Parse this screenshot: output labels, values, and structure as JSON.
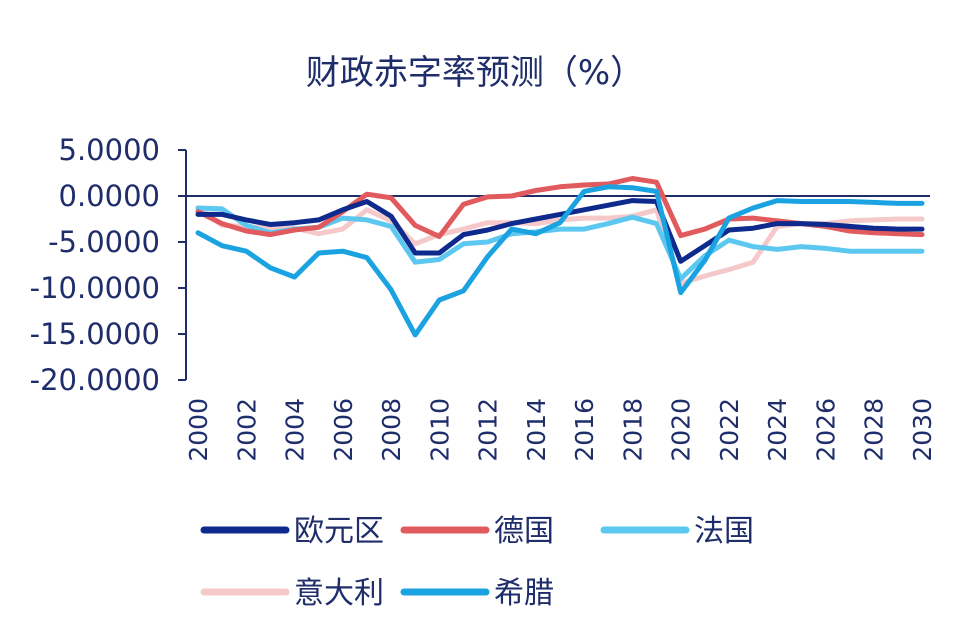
{
  "chart_data": {
    "type": "line",
    "title": "财政赤字率预测（%）",
    "xlabel": "",
    "ylabel": "",
    "ylim": [
      -20,
      5
    ],
    "y_ticks": [
      5,
      0,
      -5,
      -10,
      -15,
      -20
    ],
    "y_tick_labels": [
      "5.0000",
      "0.0000",
      "-5.0000",
      "-10.0000",
      "-15.0000",
      "-20.0000"
    ],
    "x_ticks": [
      "2000",
      "2002",
      "2004",
      "2006",
      "2008",
      "2010",
      "2012",
      "2014",
      "2016",
      "2018",
      "2020",
      "2022",
      "2024",
      "2026",
      "2028",
      "2030"
    ],
    "legend_position": "bottom",
    "x": [
      2000,
      2001,
      2002,
      2003,
      2004,
      2005,
      2006,
      2007,
      2008,
      2009,
      2010,
      2011,
      2012,
      2013,
      2014,
      2015,
      2016,
      2017,
      2018,
      2019,
      2020,
      2021,
      2022,
      2023,
      2024,
      2025,
      2026,
      2027,
      2028,
      2029,
      2030
    ],
    "series": [
      {
        "name": "欧元区",
        "color": "#0d2a8c",
        "values": [
          -2.0,
          -2.0,
          -2.6,
          -3.1,
          -2.9,
          -2.6,
          -1.5,
          -0.6,
          -2.2,
          -6.2,
          -6.2,
          -4.2,
          -3.7,
          -3.0,
          -2.5,
          -2.0,
          -1.5,
          -1.0,
          -0.5,
          -0.6,
          -7.1,
          -5.4,
          -3.7,
          -3.5,
          -3.0,
          -3.0,
          -3.1,
          -3.3,
          -3.5,
          -3.6,
          -3.6
        ]
      },
      {
        "name": "德国",
        "color": "#e05a5e",
        "values": [
          -1.7,
          -3.0,
          -3.8,
          -4.2,
          -3.7,
          -3.4,
          -1.7,
          0.2,
          -0.2,
          -3.2,
          -4.4,
          -0.9,
          -0.1,
          0.0,
          0.6,
          1.0,
          1.2,
          1.3,
          1.9,
          1.5,
          -4.3,
          -3.6,
          -2.5,
          -2.4,
          -2.7,
          -3.0,
          -3.3,
          -3.8,
          -4.0,
          -4.1,
          -4.2
        ]
      },
      {
        "name": "法国",
        "color": "#5cc8f0",
        "values": [
          -1.3,
          -1.4,
          -3.2,
          -4.0,
          -3.6,
          -3.4,
          -2.4,
          -2.6,
          -3.3,
          -7.2,
          -6.9,
          -5.2,
          -5.0,
          -4.1,
          -3.9,
          -3.6,
          -3.6,
          -3.0,
          -2.3,
          -3.0,
          -9.0,
          -6.5,
          -4.8,
          -5.5,
          -5.8,
          -5.5,
          -5.7,
          -6.0,
          -6.0,
          -6.0,
          -6.0
        ]
      },
      {
        "name": "意大利",
        "color": "#f5c9c9",
        "values": [
          -1.3,
          -3.2,
          -3.3,
          -3.5,
          -3.5,
          -4.1,
          -3.6,
          -1.5,
          -2.7,
          -5.2,
          -4.2,
          -3.6,
          -2.9,
          -2.9,
          -3.0,
          -2.6,
          -2.4,
          -2.4,
          -2.2,
          -1.5,
          -9.5,
          -8.7,
          -8.0,
          -7.2,
          -3.3,
          -3.0,
          -3.0,
          -2.7,
          -2.6,
          -2.5,
          -2.5
        ]
      },
      {
        "name": "希腊",
        "color": "#1aa3e0",
        "values": [
          -4.0,
          -5.4,
          -6.0,
          -7.8,
          -8.8,
          -6.2,
          -6.0,
          -6.7,
          -10.2,
          -15.1,
          -11.3,
          -10.3,
          -6.6,
          -3.6,
          -4.1,
          -2.9,
          0.5,
          1.0,
          0.9,
          0.5,
          -10.5,
          -7.0,
          -2.4,
          -1.3,
          -0.5,
          -0.6,
          -0.6,
          -0.6,
          -0.7,
          -0.8,
          -0.8
        ]
      }
    ]
  }
}
